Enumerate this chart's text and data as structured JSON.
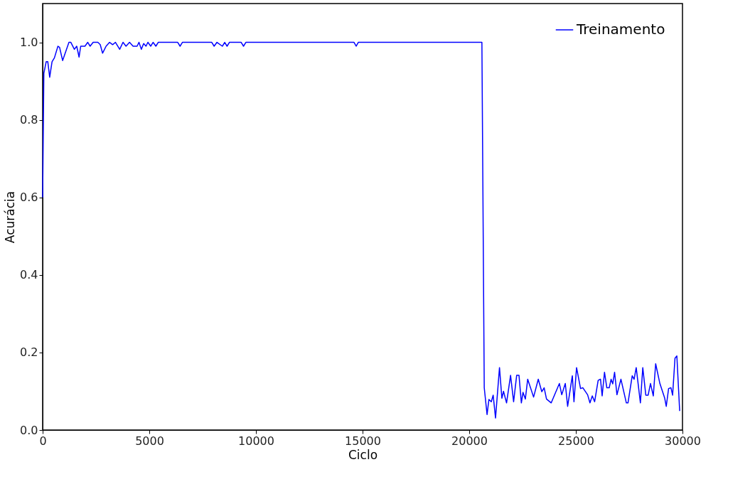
{
  "chart_data": {
    "type": "line",
    "xlabel": "Ciclo",
    "ylabel": "Acurácia",
    "xlim": [
      0,
      30000
    ],
    "ylim": [
      0,
      1.1
    ],
    "xticks": [
      0,
      5000,
      10000,
      15000,
      20000,
      25000,
      30000
    ],
    "yticks": [
      {
        "value": 0,
        "label": "0.0"
      },
      0.2,
      0.4,
      0.6,
      0.8,
      {
        "value": 1,
        "label": "1.0"
      }
    ],
    "grid": false,
    "legend": "top right",
    "marker": "none",
    "line_style": "solid",
    "x": [
      0,
      56,
      165,
      241,
      330,
      440,
      551,
      716,
      793,
      936,
      1080,
      1233,
      1322,
      1487,
      1597,
      1707,
      1784,
      1983,
      2115,
      2225,
      2368,
      2588,
      2699,
      2809,
      2974,
      3139,
      3282,
      3414,
      3612,
      3767,
      3909,
      4074,
      4239,
      4428,
      4516,
      4626,
      4736,
      4846,
      4934,
      5066,
      5177,
      5309,
      5419,
      6333,
      6443,
      6553,
      7930,
      8040,
      8172,
      8426,
      8536,
      8646,
      8757,
      9308,
      9418,
      9528,
      14600,
      14700,
      14800,
      20595,
      20705,
      20837,
      20925,
      21035,
      21123,
      21234,
      21420,
      21531,
      21608,
      21751,
      21939,
      22082,
      22225,
      22335,
      22445,
      22522,
      22632,
      22742,
      23019,
      23238,
      23403,
      23514,
      23624,
      23845,
      24229,
      24339,
      24505,
      24615,
      24835,
      24912,
      25033,
      25220,
      25330,
      25551,
      25661,
      25771,
      25881,
      26046,
      26156,
      26233,
      26343,
      26453,
      26564,
      26652,
      26729,
      26817,
      26927,
      27115,
      27368,
      27445,
      27643,
      27731,
      27830,
      28027,
      28138,
      28280,
      28390,
      28500,
      28632,
      28742,
      28940,
      29162,
      29239,
      29349,
      29460,
      29537,
      29648,
      29736,
      29868
    ],
    "series": [
      {
        "name": "Treinamento",
        "color": "#0000ff",
        "values": [
          0.6,
          0.92,
          0.95,
          0.95,
          0.91,
          0.95,
          0.96,
          0.99,
          0.987,
          0.953,
          0.976,
          1.0,
          1.0,
          0.982,
          0.99,
          0.962,
          0.99,
          0.99,
          1.0,
          0.99,
          1.0,
          1.0,
          0.994,
          0.972,
          0.99,
          1.0,
          0.994,
          1.0,
          0.982,
          1.0,
          0.99,
          1.0,
          0.99,
          0.99,
          1.0,
          0.982,
          0.997,
          0.99,
          1.0,
          0.99,
          1.0,
          0.99,
          1.0,
          1.0,
          0.99,
          1.0,
          1.0,
          0.99,
          1.0,
          0.99,
          1.0,
          0.99,
          1.0,
          1.0,
          0.99,
          1.0,
          1.0,
          0.99,
          1.0,
          1.0,
          0.109,
          0.04,
          0.079,
          0.073,
          0.09,
          0.031,
          0.161,
          0.082,
          0.1,
          0.07,
          0.141,
          0.073,
          0.141,
          0.141,
          0.07,
          0.097,
          0.08,
          0.131,
          0.085,
          0.131,
          0.099,
          0.109,
          0.08,
          0.07,
          0.12,
          0.091,
          0.12,
          0.061,
          0.14,
          0.073,
          0.161,
          0.107,
          0.109,
          0.091,
          0.07,
          0.088,
          0.073,
          0.128,
          0.131,
          0.088,
          0.149,
          0.109,
          0.109,
          0.131,
          0.119,
          0.149,
          0.091,
          0.131,
          0.07,
          0.07,
          0.14,
          0.131,
          0.161,
          0.07,
          0.161,
          0.09,
          0.09,
          0.12,
          0.088,
          0.171,
          0.12,
          0.083,
          0.061,
          0.107,
          0.109,
          0.09,
          0.185,
          0.191,
          0.049
        ]
      }
    ]
  }
}
